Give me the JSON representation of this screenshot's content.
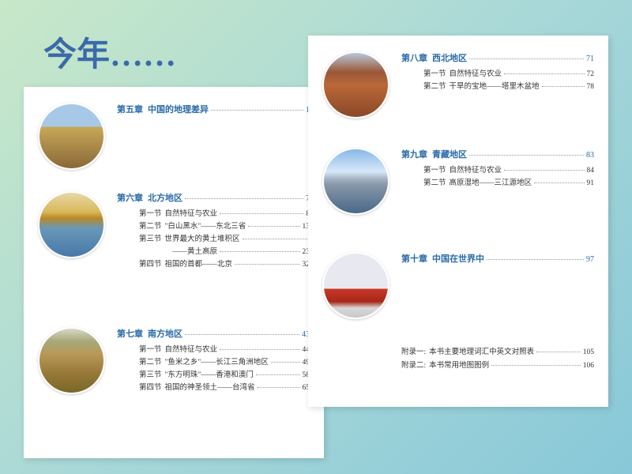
{
  "title": "今年……",
  "left": {
    "chapters": [
      {
        "label": "第五章",
        "name": "中国的地理差异",
        "page": "1",
        "thumb": "scene-mountain",
        "sections": []
      },
      {
        "label": "第六章",
        "name": "北方地区",
        "page": "7",
        "thumb": "scene-lake",
        "sections": [
          {
            "label": "第一节",
            "name": "自然特征与农业",
            "page": "8"
          },
          {
            "label": "第二节",
            "name": "\"白山黑水\"——东北三省",
            "page": "13"
          },
          {
            "label": "第三节",
            "name": "世界最大的黄土堆积区",
            "page": "",
            "sub": "——黄土高原",
            "subpage": "23"
          },
          {
            "label": "第四节",
            "name": "祖国的首都——北京",
            "page": "32"
          }
        ]
      },
      {
        "label": "第七章",
        "name": "南方地区",
        "page": "43",
        "thumb": "scene-terrace",
        "sections": [
          {
            "label": "第一节",
            "name": "自然特征与农业",
            "page": "44"
          },
          {
            "label": "第二节",
            "name": "\"鱼米之乡\"——长江三角洲地区",
            "page": "49"
          },
          {
            "label": "第三节",
            "name": "\"东方明珠\"——香港和澳门",
            "page": "58"
          },
          {
            "label": "第四节",
            "name": "祖国的神圣领土——台湾省",
            "page": "65"
          }
        ]
      }
    ]
  },
  "right": {
    "chapters": [
      {
        "label": "第八章",
        "name": "西北地区",
        "page": "71",
        "thumb": "scene-canyon",
        "sections": [
          {
            "label": "第一节",
            "name": "自然特征与农业",
            "page": "72"
          },
          {
            "label": "第二节",
            "name": "干旱的宝地——塔里木盆地",
            "page": "78"
          }
        ]
      },
      {
        "label": "第九章",
        "name": "青藏地区",
        "page": "83",
        "thumb": "scene-tibet",
        "sections": [
          {
            "label": "第一节",
            "name": "自然特征与农业",
            "page": "84"
          },
          {
            "label": "第二节",
            "name": "高原湿地——三江源地区",
            "page": "91"
          }
        ]
      },
      {
        "label": "第十章",
        "name": "中国在世界中",
        "page": "97",
        "thumb": "scene-pavilion",
        "sections": []
      }
    ],
    "appendix": [
      {
        "label": "附录一:",
        "name": "本书主要地理词汇中英文对照表",
        "page": "105"
      },
      {
        "label": "附录二:",
        "name": "本书常用地图图例",
        "page": "106"
      }
    ]
  }
}
